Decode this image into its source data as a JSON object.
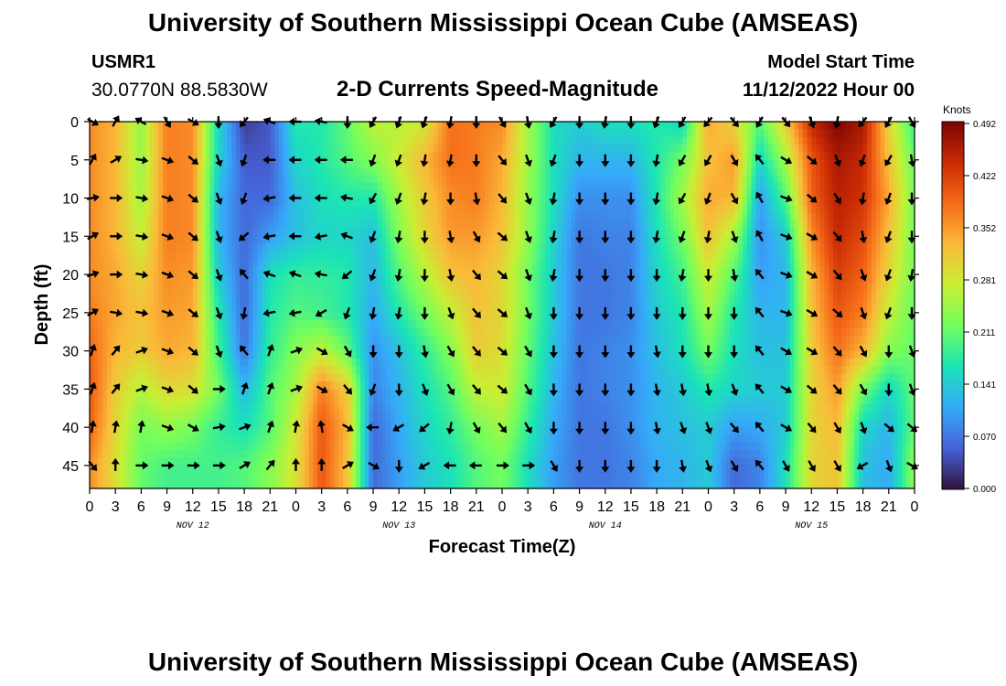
{
  "header": {
    "title": "University of Southern Mississippi Ocean Cube (AMSEAS)",
    "station": "USMR1",
    "coords": "30.0770N  88.5830W",
    "subtitle": "2-D Currents Speed-Magnitude",
    "model_start_label": "Model Start Time",
    "model_start_value": "11/12/2022 Hour 00"
  },
  "footer": {
    "title": "University of Southern Mississippi Ocean Cube (AMSEAS)"
  },
  "colorbar": {
    "units": "Knots",
    "ticks": [
      "0.492",
      "0.422",
      "0.352",
      "0.281",
      "0.211",
      "0.141",
      "0.070",
      "0.000"
    ],
    "min": 0.0,
    "max": 0.492,
    "colors": [
      "#30123b",
      "#4662d7",
      "#36aaf9",
      "#1ae4b6",
      "#72fe5e",
      "#c8ef34",
      "#faba39",
      "#f66b19",
      "#ca2a04",
      "#7a0403"
    ]
  },
  "chart_data": {
    "type": "heatmap",
    "title": "2-D Currents Speed-Magnitude",
    "xlabel": "Forecast Time(Z)",
    "ylabel": "Depth (ft)",
    "xlim": [
      0,
      96
    ],
    "ylim": [
      48,
      0
    ],
    "x_tick_labels": [
      "0",
      "3",
      "6",
      "9",
      "12",
      "15",
      "18",
      "21",
      "0",
      "3",
      "6",
      "9",
      "12",
      "15",
      "18",
      "21",
      "0",
      "3",
      "6",
      "9",
      "12",
      "15",
      "18",
      "21",
      "0",
      "3",
      "6",
      "9",
      "12",
      "15",
      "18",
      "21",
      "0"
    ],
    "date_labels": [
      {
        "label": "NOV 12",
        "hour": 12
      },
      {
        "label": "NOV 13",
        "hour": 36
      },
      {
        "label": "NOV 14",
        "hour": 60
      },
      {
        "label": "NOV 15",
        "hour": 84
      }
    ],
    "y_ticks": [
      0,
      5,
      10,
      15,
      20,
      25,
      30,
      35,
      40,
      45
    ],
    "hours": [
      0,
      3,
      6,
      9,
      12,
      15,
      18,
      21,
      24,
      27,
      30,
      33,
      36,
      39,
      42,
      45,
      48,
      51,
      54,
      57,
      60,
      63,
      66,
      69,
      72,
      75,
      78,
      81,
      84,
      87,
      90,
      93,
      96
    ],
    "depths_ft": [
      0,
      5,
      10,
      15,
      20,
      25,
      30,
      35,
      40,
      45
    ],
    "speed_knots": [
      [
        0.36,
        0.33,
        0.24,
        0.37,
        0.36,
        0.15,
        0.03,
        0.05,
        0.17,
        0.17,
        0.21,
        0.27,
        0.26,
        0.28,
        0.38,
        0.37,
        0.36,
        0.25,
        0.16,
        0.14,
        0.16,
        0.16,
        0.17,
        0.15,
        0.34,
        0.3,
        0.2,
        0.31,
        0.44,
        0.49,
        0.46,
        0.3,
        0.18
      ],
      [
        0.36,
        0.33,
        0.24,
        0.37,
        0.36,
        0.15,
        0.05,
        0.05,
        0.15,
        0.17,
        0.2,
        0.23,
        0.28,
        0.33,
        0.38,
        0.37,
        0.34,
        0.25,
        0.16,
        0.12,
        0.12,
        0.12,
        0.17,
        0.22,
        0.32,
        0.35,
        0.15,
        0.25,
        0.4,
        0.46,
        0.44,
        0.32,
        0.21
      ],
      [
        0.36,
        0.33,
        0.25,
        0.37,
        0.36,
        0.12,
        0.06,
        0.06,
        0.13,
        0.16,
        0.17,
        0.17,
        0.25,
        0.31,
        0.36,
        0.37,
        0.33,
        0.24,
        0.16,
        0.09,
        0.09,
        0.09,
        0.17,
        0.25,
        0.34,
        0.33,
        0.1,
        0.2,
        0.39,
        0.45,
        0.43,
        0.34,
        0.22
      ],
      [
        0.36,
        0.33,
        0.27,
        0.37,
        0.36,
        0.12,
        0.06,
        0.1,
        0.13,
        0.15,
        0.15,
        0.13,
        0.23,
        0.3,
        0.35,
        0.35,
        0.32,
        0.24,
        0.15,
        0.07,
        0.08,
        0.08,
        0.16,
        0.22,
        0.32,
        0.25,
        0.09,
        0.14,
        0.36,
        0.44,
        0.41,
        0.32,
        0.22
      ],
      [
        0.36,
        0.34,
        0.3,
        0.36,
        0.35,
        0.14,
        0.06,
        0.16,
        0.18,
        0.18,
        0.17,
        0.12,
        0.2,
        0.26,
        0.32,
        0.33,
        0.3,
        0.22,
        0.14,
        0.07,
        0.07,
        0.08,
        0.15,
        0.19,
        0.28,
        0.2,
        0.1,
        0.12,
        0.33,
        0.42,
        0.39,
        0.3,
        0.22
      ],
      [
        0.37,
        0.34,
        0.32,
        0.35,
        0.34,
        0.17,
        0.06,
        0.17,
        0.2,
        0.19,
        0.17,
        0.11,
        0.17,
        0.22,
        0.27,
        0.32,
        0.3,
        0.22,
        0.14,
        0.07,
        0.07,
        0.08,
        0.14,
        0.17,
        0.25,
        0.17,
        0.12,
        0.12,
        0.32,
        0.4,
        0.37,
        0.27,
        0.21
      ],
      [
        0.39,
        0.33,
        0.31,
        0.34,
        0.33,
        0.19,
        0.07,
        0.18,
        0.23,
        0.27,
        0.21,
        0.09,
        0.13,
        0.18,
        0.23,
        0.31,
        0.29,
        0.21,
        0.13,
        0.07,
        0.08,
        0.09,
        0.13,
        0.16,
        0.22,
        0.16,
        0.13,
        0.13,
        0.31,
        0.38,
        0.33,
        0.23,
        0.21
      ],
      [
        0.4,
        0.31,
        0.26,
        0.3,
        0.29,
        0.22,
        0.12,
        0.2,
        0.25,
        0.37,
        0.31,
        0.08,
        0.12,
        0.16,
        0.2,
        0.27,
        0.28,
        0.2,
        0.12,
        0.07,
        0.08,
        0.09,
        0.12,
        0.14,
        0.17,
        0.15,
        0.14,
        0.14,
        0.3,
        0.35,
        0.22,
        0.15,
        0.21
      ],
      [
        0.39,
        0.3,
        0.22,
        0.24,
        0.22,
        0.18,
        0.16,
        0.2,
        0.28,
        0.4,
        0.33,
        0.06,
        0.11,
        0.15,
        0.18,
        0.22,
        0.25,
        0.18,
        0.11,
        0.07,
        0.07,
        0.09,
        0.12,
        0.13,
        0.14,
        0.1,
        0.11,
        0.14,
        0.3,
        0.33,
        0.15,
        0.12,
        0.21
      ],
      [
        0.36,
        0.29,
        0.21,
        0.19,
        0.19,
        0.19,
        0.2,
        0.23,
        0.29,
        0.4,
        0.32,
        0.06,
        0.1,
        0.14,
        0.16,
        0.2,
        0.22,
        0.16,
        0.1,
        0.07,
        0.07,
        0.08,
        0.11,
        0.12,
        0.14,
        0.06,
        0.08,
        0.16,
        0.3,
        0.32,
        0.13,
        0.11,
        0.24
      ]
    ],
    "direction_deg": [
      [
        120,
        30,
        300,
        150,
        120,
        180,
        220,
        290,
        270,
        280,
        180,
        210,
        200,
        200,
        190,
        180,
        150,
        170,
        210,
        180,
        190,
        180,
        200,
        210,
        220,
        140,
        210,
        140,
        160,
        190,
        220,
        210,
        150
      ],
      [
        30,
        60,
        100,
        110,
        130,
        160,
        200,
        270,
        270,
        270,
        270,
        200,
        200,
        190,
        190,
        180,
        140,
        160,
        200,
        180,
        180,
        180,
        190,
        210,
        210,
        150,
        320,
        120,
        130,
        160,
        200,
        210,
        170
      ],
      [
        80,
        90,
        100,
        110,
        130,
        160,
        200,
        260,
        270,
        270,
        280,
        210,
        200,
        190,
        180,
        170,
        140,
        160,
        190,
        180,
        180,
        180,
        190,
        210,
        200,
        150,
        330,
        110,
        130,
        150,
        190,
        200,
        180
      ],
      [
        60,
        90,
        100,
        110,
        130,
        160,
        230,
        260,
        270,
        260,
        290,
        200,
        190,
        180,
        170,
        150,
        130,
        160,
        190,
        180,
        180,
        180,
        190,
        200,
        190,
        160,
        330,
        110,
        120,
        140,
        170,
        200,
        180
      ],
      [
        70,
        90,
        100,
        110,
        130,
        160,
        320,
        290,
        290,
        280,
        230,
        200,
        190,
        180,
        170,
        140,
        130,
        160,
        190,
        180,
        180,
        180,
        180,
        190,
        180,
        170,
        320,
        110,
        120,
        140,
        160,
        200,
        190
      ],
      [
        60,
        100,
        100,
        110,
        130,
        160,
        190,
        260,
        260,
        240,
        200,
        190,
        190,
        180,
        160,
        140,
        130,
        160,
        180,
        180,
        180,
        180,
        180,
        180,
        180,
        180,
        320,
        110,
        120,
        130,
        160,
        200,
        180
      ],
      [
        20,
        40,
        70,
        110,
        130,
        160,
        320,
        20,
        70,
        120,
        150,
        180,
        180,
        170,
        150,
        140,
        130,
        150,
        180,
        180,
        180,
        180,
        170,
        180,
        180,
        180,
        320,
        120,
        120,
        140,
        150,
        180,
        160
      ],
      [
        20,
        40,
        70,
        110,
        130,
        90,
        20,
        20,
        70,
        120,
        140,
        200,
        180,
        160,
        150,
        140,
        130,
        150,
        180,
        180,
        180,
        180,
        170,
        170,
        170,
        160,
        320,
        120,
        130,
        140,
        150,
        180,
        160
      ],
      [
        10,
        10,
        10,
        110,
        120,
        80,
        70,
        20,
        10,
        350,
        120,
        270,
        240,
        230,
        190,
        150,
        140,
        150,
        180,
        180,
        180,
        180,
        170,
        160,
        160,
        140,
        320,
        120,
        140,
        150,
        160,
        130,
        130
      ],
      [
        140,
        0,
        90,
        90,
        90,
        90,
        60,
        40,
        0,
        0,
        60,
        120,
        180,
        240,
        270,
        270,
        90,
        90,
        150,
        180,
        180,
        180,
        180,
        170,
        160,
        150,
        320,
        150,
        150,
        150,
        240,
        160,
        120
      ]
    ]
  },
  "axes": {
    "xlabel": "Forecast Time(Z)",
    "ylabel": "Depth (ft)"
  }
}
